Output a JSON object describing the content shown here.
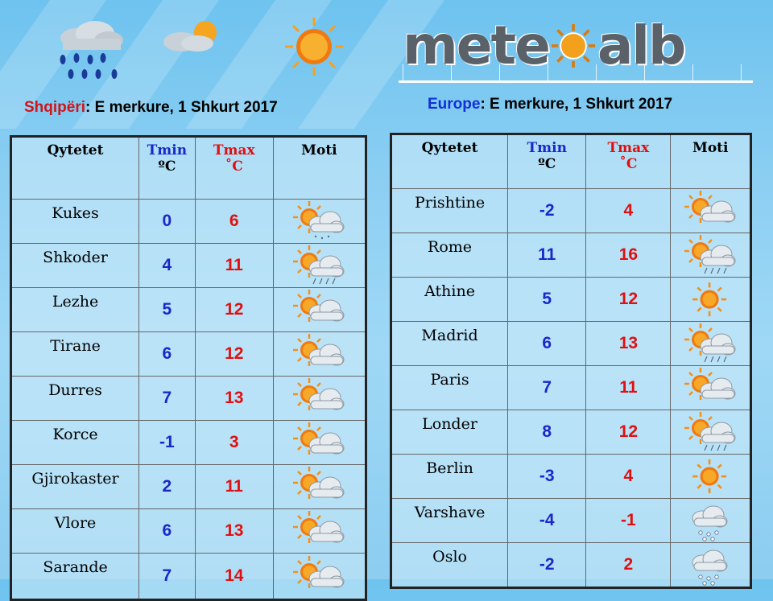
{
  "logo": {
    "left": "mete",
    "right": "alb"
  },
  "albania": {
    "label": "Shqipëri",
    "date": ": E merkure, 1 Shkurt 2017",
    "headers": {
      "city": "Qytetet",
      "tmin": "Tmin",
      "tmin_unit": "ºC",
      "tmax": "Tmax",
      "tmax_unit": "˚C",
      "weather": "Moti"
    },
    "rows": [
      {
        "city": "Kukes",
        "tmin": "0",
        "tmax": "6",
        "icon": "sun-cloud-snow-icon"
      },
      {
        "city": "Shkoder",
        "tmin": "4",
        "tmax": "11",
        "icon": "sun-cloud-rain-icon"
      },
      {
        "city": "Lezhe",
        "tmin": "5",
        "tmax": "12",
        "icon": "sun-cloud-icon"
      },
      {
        "city": "Tirane",
        "tmin": "6",
        "tmax": "12",
        "icon": "sun-cloud-icon"
      },
      {
        "city": "Durres",
        "tmin": "7",
        "tmax": "13",
        "icon": "sun-cloud-icon"
      },
      {
        "city": "Korce",
        "tmin": "-1",
        "tmax": "3",
        "icon": "sun-cloud-icon"
      },
      {
        "city": "Gjirokaster",
        "tmin": "2",
        "tmax": "11",
        "icon": "sun-cloud-icon"
      },
      {
        "city": "Vlore",
        "tmin": "6",
        "tmax": "13",
        "icon": "sun-cloud-icon"
      },
      {
        "city": "Sarande",
        "tmin": "7",
        "tmax": "14",
        "icon": "sun-cloud-icon"
      }
    ]
  },
  "europe": {
    "label": "Europe",
    "date": ": E merkure, 1 Shkurt 2017",
    "headers": {
      "city": "Qytetet",
      "tmin": "Tmin",
      "tmin_unit": "ºC",
      "tmax": "Tmax",
      "tmax_unit": "˚C",
      "weather": "Moti"
    },
    "rows": [
      {
        "city": "Prishtine",
        "tmin": "-2",
        "tmax": "4",
        "icon": "sun-cloud-icon"
      },
      {
        "city": "Rome",
        "tmin": "11",
        "tmax": "16",
        "icon": "sun-cloud-rain-icon"
      },
      {
        "city": "Athine",
        "tmin": "5",
        "tmax": "12",
        "icon": "sun-icon"
      },
      {
        "city": "Madrid",
        "tmin": "6",
        "tmax": "13",
        "icon": "sun-cloud-rain-icon"
      },
      {
        "city": "Paris",
        "tmin": "7",
        "tmax": "11",
        "icon": "sun-cloud-icon"
      },
      {
        "city": "Londer",
        "tmin": "8",
        "tmax": "12",
        "icon": "sun-cloud-rain-icon"
      },
      {
        "city": "Berlin",
        "tmin": "-3",
        "tmax": "4",
        "icon": "sun-icon"
      },
      {
        "city": "Varshave",
        "tmin": "-4",
        "tmax": "-1",
        "icon": "cloud-snow-icon"
      },
      {
        "city": "Oslo",
        "tmin": "-2",
        "tmax": "2",
        "icon": "cloud-snow-icon"
      }
    ]
  },
  "colors": {
    "tmin": "#1a28c8",
    "tmax": "#e01010",
    "country_label": "#d0141a",
    "europe_label": "#1130d8",
    "sun": "#f07a10"
  }
}
